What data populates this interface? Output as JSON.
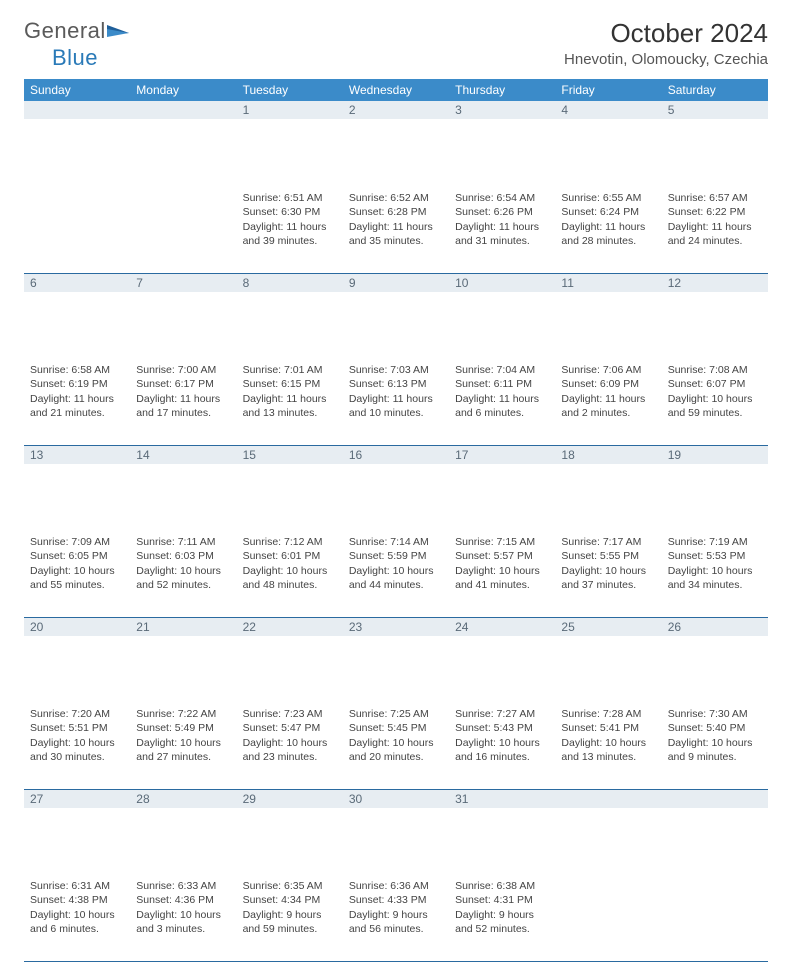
{
  "brand": {
    "word1": "General",
    "word2": "Blue"
  },
  "title": "October 2024",
  "location": "Hnevotin, Olomoucky, Czechia",
  "colors": {
    "header_bg": "#3b8bc9",
    "header_text": "#ffffff",
    "daynum_bg": "#e7edf2",
    "daynum_text": "#5a6a78",
    "row_divider": "#2a6aa0",
    "body_text": "#444444",
    "brand_gray": "#5a5a5a",
    "brand_blue": "#2a7ab8"
  },
  "weekdays": [
    "Sunday",
    "Monday",
    "Tuesday",
    "Wednesday",
    "Thursday",
    "Friday",
    "Saturday"
  ],
  "weeks": [
    [
      null,
      null,
      {
        "n": "1",
        "sunrise": "Sunrise: 6:51 AM",
        "sunset": "Sunset: 6:30 PM",
        "day1": "Daylight: 11 hours",
        "day2": "and 39 minutes."
      },
      {
        "n": "2",
        "sunrise": "Sunrise: 6:52 AM",
        "sunset": "Sunset: 6:28 PM",
        "day1": "Daylight: 11 hours",
        "day2": "and 35 minutes."
      },
      {
        "n": "3",
        "sunrise": "Sunrise: 6:54 AM",
        "sunset": "Sunset: 6:26 PM",
        "day1": "Daylight: 11 hours",
        "day2": "and 31 minutes."
      },
      {
        "n": "4",
        "sunrise": "Sunrise: 6:55 AM",
        "sunset": "Sunset: 6:24 PM",
        "day1": "Daylight: 11 hours",
        "day2": "and 28 minutes."
      },
      {
        "n": "5",
        "sunrise": "Sunrise: 6:57 AM",
        "sunset": "Sunset: 6:22 PM",
        "day1": "Daylight: 11 hours",
        "day2": "and 24 minutes."
      }
    ],
    [
      {
        "n": "6",
        "sunrise": "Sunrise: 6:58 AM",
        "sunset": "Sunset: 6:19 PM",
        "day1": "Daylight: 11 hours",
        "day2": "and 21 minutes."
      },
      {
        "n": "7",
        "sunrise": "Sunrise: 7:00 AM",
        "sunset": "Sunset: 6:17 PM",
        "day1": "Daylight: 11 hours",
        "day2": "and 17 minutes."
      },
      {
        "n": "8",
        "sunrise": "Sunrise: 7:01 AM",
        "sunset": "Sunset: 6:15 PM",
        "day1": "Daylight: 11 hours",
        "day2": "and 13 minutes."
      },
      {
        "n": "9",
        "sunrise": "Sunrise: 7:03 AM",
        "sunset": "Sunset: 6:13 PM",
        "day1": "Daylight: 11 hours",
        "day2": "and 10 minutes."
      },
      {
        "n": "10",
        "sunrise": "Sunrise: 7:04 AM",
        "sunset": "Sunset: 6:11 PM",
        "day1": "Daylight: 11 hours",
        "day2": "and 6 minutes."
      },
      {
        "n": "11",
        "sunrise": "Sunrise: 7:06 AM",
        "sunset": "Sunset: 6:09 PM",
        "day1": "Daylight: 11 hours",
        "day2": "and 2 minutes."
      },
      {
        "n": "12",
        "sunrise": "Sunrise: 7:08 AM",
        "sunset": "Sunset: 6:07 PM",
        "day1": "Daylight: 10 hours",
        "day2": "and 59 minutes."
      }
    ],
    [
      {
        "n": "13",
        "sunrise": "Sunrise: 7:09 AM",
        "sunset": "Sunset: 6:05 PM",
        "day1": "Daylight: 10 hours",
        "day2": "and 55 minutes."
      },
      {
        "n": "14",
        "sunrise": "Sunrise: 7:11 AM",
        "sunset": "Sunset: 6:03 PM",
        "day1": "Daylight: 10 hours",
        "day2": "and 52 minutes."
      },
      {
        "n": "15",
        "sunrise": "Sunrise: 7:12 AM",
        "sunset": "Sunset: 6:01 PM",
        "day1": "Daylight: 10 hours",
        "day2": "and 48 minutes."
      },
      {
        "n": "16",
        "sunrise": "Sunrise: 7:14 AM",
        "sunset": "Sunset: 5:59 PM",
        "day1": "Daylight: 10 hours",
        "day2": "and 44 minutes."
      },
      {
        "n": "17",
        "sunrise": "Sunrise: 7:15 AM",
        "sunset": "Sunset: 5:57 PM",
        "day1": "Daylight: 10 hours",
        "day2": "and 41 minutes."
      },
      {
        "n": "18",
        "sunrise": "Sunrise: 7:17 AM",
        "sunset": "Sunset: 5:55 PM",
        "day1": "Daylight: 10 hours",
        "day2": "and 37 minutes."
      },
      {
        "n": "19",
        "sunrise": "Sunrise: 7:19 AM",
        "sunset": "Sunset: 5:53 PM",
        "day1": "Daylight: 10 hours",
        "day2": "and 34 minutes."
      }
    ],
    [
      {
        "n": "20",
        "sunrise": "Sunrise: 7:20 AM",
        "sunset": "Sunset: 5:51 PM",
        "day1": "Daylight: 10 hours",
        "day2": "and 30 minutes."
      },
      {
        "n": "21",
        "sunrise": "Sunrise: 7:22 AM",
        "sunset": "Sunset: 5:49 PM",
        "day1": "Daylight: 10 hours",
        "day2": "and 27 minutes."
      },
      {
        "n": "22",
        "sunrise": "Sunrise: 7:23 AM",
        "sunset": "Sunset: 5:47 PM",
        "day1": "Daylight: 10 hours",
        "day2": "and 23 minutes."
      },
      {
        "n": "23",
        "sunrise": "Sunrise: 7:25 AM",
        "sunset": "Sunset: 5:45 PM",
        "day1": "Daylight: 10 hours",
        "day2": "and 20 minutes."
      },
      {
        "n": "24",
        "sunrise": "Sunrise: 7:27 AM",
        "sunset": "Sunset: 5:43 PM",
        "day1": "Daylight: 10 hours",
        "day2": "and 16 minutes."
      },
      {
        "n": "25",
        "sunrise": "Sunrise: 7:28 AM",
        "sunset": "Sunset: 5:41 PM",
        "day1": "Daylight: 10 hours",
        "day2": "and 13 minutes."
      },
      {
        "n": "26",
        "sunrise": "Sunrise: 7:30 AM",
        "sunset": "Sunset: 5:40 PM",
        "day1": "Daylight: 10 hours",
        "day2": "and 9 minutes."
      }
    ],
    [
      {
        "n": "27",
        "sunrise": "Sunrise: 6:31 AM",
        "sunset": "Sunset: 4:38 PM",
        "day1": "Daylight: 10 hours",
        "day2": "and 6 minutes."
      },
      {
        "n": "28",
        "sunrise": "Sunrise: 6:33 AM",
        "sunset": "Sunset: 4:36 PM",
        "day1": "Daylight: 10 hours",
        "day2": "and 3 minutes."
      },
      {
        "n": "29",
        "sunrise": "Sunrise: 6:35 AM",
        "sunset": "Sunset: 4:34 PM",
        "day1": "Daylight: 9 hours",
        "day2": "and 59 minutes."
      },
      {
        "n": "30",
        "sunrise": "Sunrise: 6:36 AM",
        "sunset": "Sunset: 4:33 PM",
        "day1": "Daylight: 9 hours",
        "day2": "and 56 minutes."
      },
      {
        "n": "31",
        "sunrise": "Sunrise: 6:38 AM",
        "sunset": "Sunset: 4:31 PM",
        "day1": "Daylight: 9 hours",
        "day2": "and 52 minutes."
      },
      null,
      null
    ]
  ]
}
